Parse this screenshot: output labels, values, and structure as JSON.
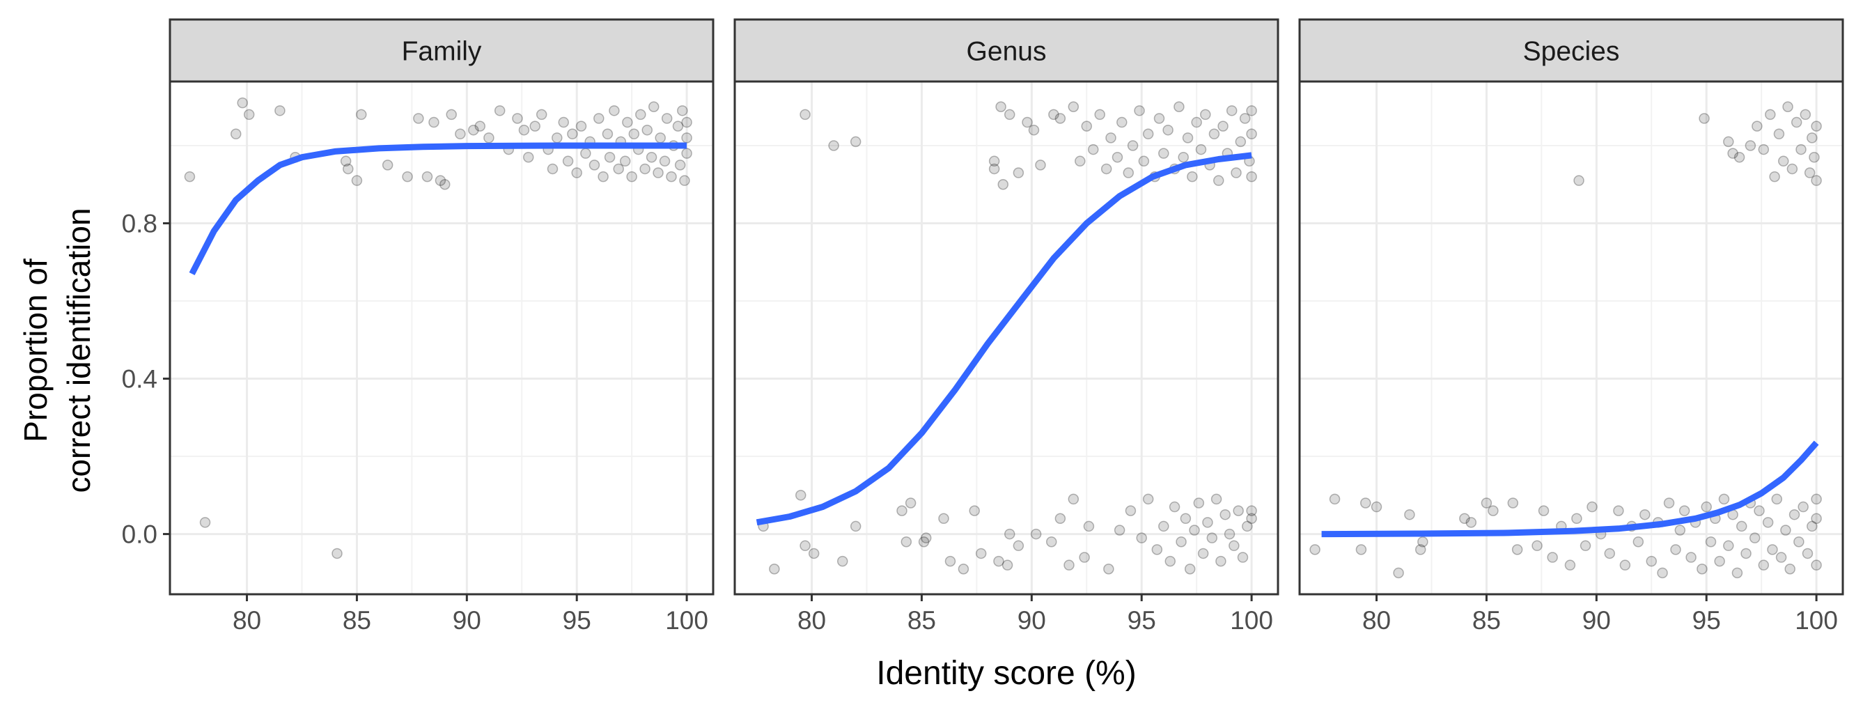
{
  "chart_data": {
    "type": "scatter",
    "xlabel": "Identity score (%)",
    "ylabel": [
      "Proportion of",
      "correct identification"
    ],
    "xlim": [
      76.5,
      101.2
    ],
    "ylim": [
      -0.155,
      1.165
    ],
    "x_ticks": [
      80,
      85,
      90,
      95,
      100
    ],
    "x_tick_labels": [
      "80",
      "85",
      "90",
      "95",
      "100"
    ],
    "y_ticks": [
      0.0,
      0.4,
      0.8
    ],
    "y_tick_labels": [
      "0.0",
      "0.4",
      "0.8"
    ],
    "grid": true,
    "fit_color": "#3366ff",
    "point_color": "#000000",
    "panels": [
      {
        "label": "Family",
        "fit_curve": [
          [
            77.5,
            0.67
          ],
          [
            78.5,
            0.78
          ],
          [
            79.5,
            0.86
          ],
          [
            80.5,
            0.91
          ],
          [
            81.5,
            0.95
          ],
          [
            82.5,
            0.97
          ],
          [
            84,
            0.985
          ],
          [
            86,
            0.993
          ],
          [
            88,
            0.997
          ],
          [
            90,
            0.999
          ],
          [
            94,
            1.0
          ],
          [
            100,
            1.0
          ]
        ],
        "points_correct": [
          [
            77.4,
            0.92
          ],
          [
            79.5,
            1.03
          ],
          [
            79.8,
            1.11
          ],
          [
            80.1,
            1.08
          ],
          [
            81.5,
            1.09
          ],
          [
            82.2,
            0.97
          ],
          [
            84.5,
            0.96
          ],
          [
            84.6,
            0.94
          ],
          [
            85,
            0.91
          ],
          [
            85.2,
            1.08
          ],
          [
            86.4,
            0.95
          ],
          [
            87.3,
            0.92
          ],
          [
            87.8,
            1.07
          ],
          [
            88.2,
            0.92
          ],
          [
            88.5,
            1.06
          ],
          [
            88.8,
            0.91
          ],
          [
            89.0,
            0.9
          ],
          [
            89.3,
            1.08
          ],
          [
            89.7,
            1.03
          ],
          [
            90.3,
            1.04
          ],
          [
            90.6,
            1.05
          ],
          [
            91.0,
            1.02
          ],
          [
            91.5,
            1.09
          ],
          [
            91.9,
            0.99
          ],
          [
            92.3,
            1.07
          ],
          [
            92.6,
            1.04
          ],
          [
            92.8,
            0.97
          ],
          [
            93.1,
            1.05
          ],
          [
            93.4,
            1.08
          ],
          [
            93.7,
            0.99
          ],
          [
            93.9,
            0.94
          ],
          [
            94.1,
            1.02
          ],
          [
            94.4,
            1.06
          ],
          [
            94.6,
            0.96
          ],
          [
            94.8,
            1.03
          ],
          [
            95.0,
            0.93
          ],
          [
            95.2,
            1.05
          ],
          [
            95.4,
            0.98
          ],
          [
            95.6,
            1.01
          ],
          [
            95.8,
            0.95
          ],
          [
            96.0,
            1.07
          ],
          [
            96.2,
            0.92
          ],
          [
            96.4,
            1.03
          ],
          [
            96.5,
            0.97
          ],
          [
            96.7,
            1.09
          ],
          [
            96.9,
            0.94
          ],
          [
            97.0,
            1.01
          ],
          [
            97.2,
            0.96
          ],
          [
            97.3,
            1.06
          ],
          [
            97.5,
            0.92
          ],
          [
            97.6,
            1.03
          ],
          [
            97.8,
            0.99
          ],
          [
            97.9,
            1.08
          ],
          [
            98.1,
            0.94
          ],
          [
            98.2,
            1.04
          ],
          [
            98.4,
            0.97
          ],
          [
            98.5,
            1.1
          ],
          [
            98.7,
            0.93
          ],
          [
            98.8,
            1.02
          ],
          [
            99.0,
            0.96
          ],
          [
            99.1,
            1.07
          ],
          [
            99.3,
            0.92
          ],
          [
            99.4,
            1.0
          ],
          [
            99.6,
            1.05
          ],
          [
            99.7,
            0.95
          ],
          [
            99.8,
            1.09
          ],
          [
            99.9,
            0.91
          ],
          [
            100,
            1.02
          ],
          [
            100,
            0.98
          ],
          [
            100,
            1.06
          ]
        ],
        "points_incorrect": [
          [
            78.1,
            0.03
          ],
          [
            84.1,
            -0.05
          ]
        ]
      },
      {
        "label": "Genus",
        "fit_curve": [
          [
            77.5,
            0.03
          ],
          [
            79,
            0.045
          ],
          [
            80.5,
            0.07
          ],
          [
            82,
            0.11
          ],
          [
            83.5,
            0.17
          ],
          [
            85,
            0.26
          ],
          [
            86.5,
            0.37
          ],
          [
            88,
            0.49
          ],
          [
            89.5,
            0.6
          ],
          [
            91,
            0.71
          ],
          [
            92.5,
            0.8
          ],
          [
            94,
            0.87
          ],
          [
            95.5,
            0.92
          ],
          [
            97,
            0.95
          ],
          [
            98.5,
            0.965
          ],
          [
            100,
            0.975
          ]
        ],
        "points_correct": [
          [
            79.7,
            1.08
          ],
          [
            81.0,
            1.0
          ],
          [
            82.0,
            1.01
          ],
          [
            88.3,
            0.96
          ],
          [
            88.3,
            0.94
          ],
          [
            88.6,
            1.1
          ],
          [
            88.7,
            0.9
          ],
          [
            89.0,
            1.08
          ],
          [
            89.4,
            0.93
          ],
          [
            89.8,
            1.06
          ],
          [
            90.1,
            1.04
          ],
          [
            90.4,
            0.95
          ],
          [
            91.0,
            1.08
          ],
          [
            91.3,
            1.07
          ],
          [
            91.9,
            1.1
          ],
          [
            92.2,
            0.96
          ],
          [
            92.5,
            1.05
          ],
          [
            92.8,
            0.99
          ],
          [
            93.1,
            1.08
          ],
          [
            93.4,
            0.94
          ],
          [
            93.6,
            1.02
          ],
          [
            93.9,
            0.97
          ],
          [
            94.1,
            1.06
          ],
          [
            94.4,
            0.93
          ],
          [
            94.6,
            1.0
          ],
          [
            94.9,
            1.09
          ],
          [
            95.1,
            0.96
          ],
          [
            95.3,
            1.03
          ],
          [
            95.6,
            0.92
          ],
          [
            95.8,
            1.07
          ],
          [
            96.0,
            0.98
          ],
          [
            96.2,
            1.04
          ],
          [
            96.5,
            0.94
          ],
          [
            96.7,
            1.1
          ],
          [
            96.9,
            0.97
          ],
          [
            97.1,
            1.02
          ],
          [
            97.3,
            0.92
          ],
          [
            97.5,
            1.06
          ],
          [
            97.7,
            0.99
          ],
          [
            97.9,
            1.08
          ],
          [
            98.1,
            0.95
          ],
          [
            98.3,
            1.03
          ],
          [
            98.5,
            0.91
          ],
          [
            98.7,
            1.05
          ],
          [
            98.9,
            0.98
          ],
          [
            99.1,
            1.09
          ],
          [
            99.3,
            0.93
          ],
          [
            99.5,
            1.01
          ],
          [
            99.7,
            1.07
          ],
          [
            99.9,
            0.96
          ],
          [
            100,
            1.03
          ],
          [
            100,
            0.92
          ],
          [
            100,
            1.09
          ]
        ],
        "points_incorrect": [
          [
            77.8,
            0.02
          ],
          [
            78.3,
            -0.09
          ],
          [
            79.5,
            0.1
          ],
          [
            79.7,
            -0.03
          ],
          [
            80.1,
            -0.05
          ],
          [
            81.4,
            -0.07
          ],
          [
            82.0,
            0.02
          ],
          [
            84.1,
            0.06
          ],
          [
            84.3,
            -0.02
          ],
          [
            84.5,
            0.08
          ],
          [
            85.1,
            -0.02
          ],
          [
            85.2,
            -0.01
          ],
          [
            86.0,
            0.04
          ],
          [
            86.3,
            -0.07
          ],
          [
            86.9,
            -0.09
          ],
          [
            87.4,
            0.06
          ],
          [
            87.7,
            -0.05
          ],
          [
            88.5,
            -0.07
          ],
          [
            88.9,
            -0.08
          ],
          [
            89.0,
            0.0
          ],
          [
            89.4,
            -0.03
          ],
          [
            90.2,
            0.0
          ],
          [
            90.9,
            -0.02
          ],
          [
            91.3,
            0.04
          ],
          [
            91.7,
            -0.08
          ],
          [
            91.9,
            0.09
          ],
          [
            92.4,
            -0.06
          ],
          [
            92.6,
            0.02
          ],
          [
            93.5,
            -0.09
          ],
          [
            94.0,
            0.01
          ],
          [
            94.5,
            0.06
          ],
          [
            95.0,
            -0.01
          ],
          [
            95.3,
            0.09
          ],
          [
            95.7,
            -0.04
          ],
          [
            96.0,
            0.02
          ],
          [
            96.3,
            -0.07
          ],
          [
            96.5,
            0.07
          ],
          [
            96.8,
            -0.02
          ],
          [
            97.0,
            0.04
          ],
          [
            97.2,
            -0.09
          ],
          [
            97.4,
            0.01
          ],
          [
            97.6,
            0.08
          ],
          [
            97.8,
            -0.05
          ],
          [
            98.0,
            0.03
          ],
          [
            98.2,
            -0.01
          ],
          [
            98.4,
            0.09
          ],
          [
            98.6,
            -0.07
          ],
          [
            98.8,
            0.05
          ],
          [
            99.0,
            0.0
          ],
          [
            99.2,
            -0.03
          ],
          [
            99.4,
            0.06
          ],
          [
            99.6,
            -0.06
          ],
          [
            99.8,
            0.02
          ],
          [
            100,
            0.04
          ],
          [
            100,
            0.06
          ]
        ]
      },
      {
        "label": "Species",
        "fit_curve": [
          [
            77.5,
            0.0
          ],
          [
            82,
            0.001
          ],
          [
            86,
            0.003
          ],
          [
            89,
            0.008
          ],
          [
            91,
            0.014
          ],
          [
            93,
            0.026
          ],
          [
            94.5,
            0.04
          ],
          [
            95.5,
            0.055
          ],
          [
            96.5,
            0.075
          ],
          [
            97.5,
            0.105
          ],
          [
            98.5,
            0.145
          ],
          [
            99.3,
            0.19
          ],
          [
            100,
            0.235
          ]
        ],
        "points_correct": [
          [
            89.2,
            0.91
          ],
          [
            94.9,
            1.07
          ],
          [
            96.0,
            1.01
          ],
          [
            96.2,
            0.98
          ],
          [
            96.5,
            0.97
          ],
          [
            97.0,
            1.0
          ],
          [
            97.3,
            1.05
          ],
          [
            97.6,
            0.99
          ],
          [
            97.9,
            1.08
          ],
          [
            98.1,
            0.92
          ],
          [
            98.3,
            1.03
          ],
          [
            98.5,
            0.96
          ],
          [
            98.7,
            1.1
          ],
          [
            98.9,
            0.94
          ],
          [
            99.1,
            1.06
          ],
          [
            99.3,
            0.99
          ],
          [
            99.5,
            1.08
          ],
          [
            99.7,
            0.93
          ],
          [
            99.8,
            1.02
          ],
          [
            99.9,
            0.97
          ],
          [
            100,
            1.05
          ],
          [
            100,
            0.91
          ]
        ],
        "points_incorrect": [
          [
            77.2,
            -0.04
          ],
          [
            78.1,
            0.09
          ],
          [
            79.3,
            -0.04
          ],
          [
            79.5,
            0.08
          ],
          [
            80.0,
            0.07
          ],
          [
            81.0,
            -0.1
          ],
          [
            81.5,
            0.05
          ],
          [
            82.1,
            -0.02
          ],
          [
            82.0,
            -0.04
          ],
          [
            84.0,
            0.04
          ],
          [
            84.3,
            0.03
          ],
          [
            85.0,
            0.08
          ],
          [
            85.3,
            0.06
          ],
          [
            86.2,
            0.08
          ],
          [
            86.4,
            -0.04
          ],
          [
            87.3,
            -0.03
          ],
          [
            87.6,
            0.06
          ],
          [
            88.0,
            -0.06
          ],
          [
            88.4,
            0.02
          ],
          [
            88.8,
            -0.08
          ],
          [
            89.1,
            0.04
          ],
          [
            89.5,
            -0.03
          ],
          [
            89.8,
            0.07
          ],
          [
            90.2,
            0.0
          ],
          [
            90.6,
            -0.05
          ],
          [
            91.0,
            0.06
          ],
          [
            91.3,
            -0.08
          ],
          [
            91.6,
            0.02
          ],
          [
            91.9,
            -0.02
          ],
          [
            92.2,
            0.05
          ],
          [
            92.5,
            -0.07
          ],
          [
            92.8,
            0.03
          ],
          [
            93.0,
            -0.1
          ],
          [
            93.3,
            0.08
          ],
          [
            93.6,
            -0.04
          ],
          [
            93.8,
            0.01
          ],
          [
            94.0,
            0.06
          ],
          [
            94.3,
            -0.06
          ],
          [
            94.5,
            0.03
          ],
          [
            94.8,
            -0.09
          ],
          [
            95.0,
            0.07
          ],
          [
            95.2,
            -0.02
          ],
          [
            95.4,
            0.04
          ],
          [
            95.6,
            -0.07
          ],
          [
            95.8,
            0.09
          ],
          [
            96.0,
            -0.03
          ],
          [
            96.2,
            0.05
          ],
          [
            96.4,
            -0.1
          ],
          [
            96.6,
            0.02
          ],
          [
            96.8,
            -0.05
          ],
          [
            97.0,
            0.08
          ],
          [
            97.2,
            -0.01
          ],
          [
            97.4,
            0.06
          ],
          [
            97.6,
            -0.08
          ],
          [
            97.8,
            0.03
          ],
          [
            98.0,
            -0.04
          ],
          [
            98.2,
            0.09
          ],
          [
            98.4,
            -0.06
          ],
          [
            98.6,
            0.01
          ],
          [
            98.8,
            -0.09
          ],
          [
            99.0,
            0.05
          ],
          [
            99.2,
            -0.02
          ],
          [
            99.4,
            0.07
          ],
          [
            99.6,
            -0.05
          ],
          [
            99.8,
            0.02
          ],
          [
            100,
            -0.08
          ],
          [
            100,
            0.04
          ],
          [
            100,
            0.09
          ]
        ]
      }
    ]
  }
}
